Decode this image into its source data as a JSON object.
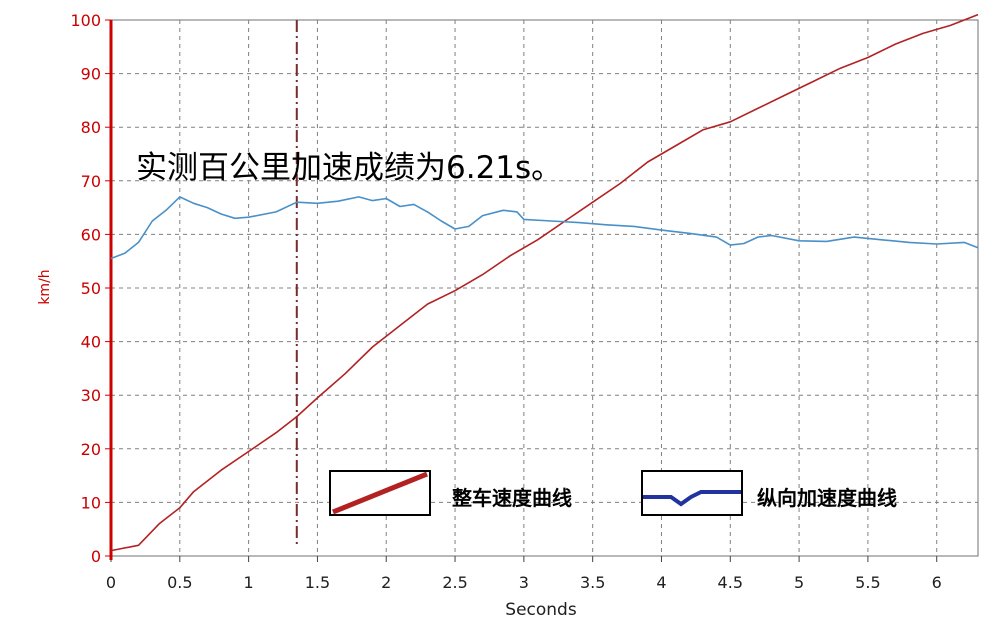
{
  "chart_data": {
    "type": "line",
    "xlabel": "Seconds",
    "ylabel": "km/h",
    "xlim": [
      0,
      6.3
    ],
    "ylim": [
      0,
      100
    ],
    "x_ticks": [
      "0",
      "0.5",
      "1",
      "1.5",
      "2",
      "2.5",
      "3",
      "3.5",
      "4",
      "4.5",
      "5",
      "5.5",
      "6"
    ],
    "y_ticks": [
      "0",
      "10",
      "20",
      "30",
      "40",
      "50",
      "60",
      "70",
      "80",
      "90",
      "100"
    ],
    "grid": true,
    "legend_placement": "bottom-right",
    "marker_time": 1.35,
    "annotation": "实测百公里加速成绩为6.21s。",
    "series": [
      {
        "name": "整车速度曲线",
        "color": "#b22222",
        "x": [
          0,
          0.2,
          0.35,
          0.5,
          0.6,
          0.8,
          1.0,
          1.2,
          1.35,
          1.5,
          1.7,
          1.9,
          2.1,
          2.3,
          2.5,
          2.7,
          2.9,
          3.1,
          3.3,
          3.5,
          3.7,
          3.9,
          4.1,
          4.3,
          4.5,
          4.7,
          4.9,
          5.1,
          5.3,
          5.5,
          5.7,
          5.9,
          6.1,
          6.3
        ],
        "y": [
          1,
          2,
          6,
          9,
          12,
          16,
          19.5,
          23,
          26,
          29.5,
          34,
          39,
          43,
          47,
          49.5,
          52.5,
          56,
          59,
          62.5,
          66,
          69.5,
          73.5,
          76.5,
          79.5,
          81,
          83.5,
          86,
          88.5,
          91,
          93,
          95.5,
          97.5,
          99,
          101
        ]
      },
      {
        "name": "纵向加速度曲线",
        "color": "#4a90c8",
        "x": [
          0,
          0.1,
          0.2,
          0.3,
          0.4,
          0.5,
          0.6,
          0.7,
          0.8,
          0.9,
          1.0,
          1.2,
          1.35,
          1.5,
          1.65,
          1.8,
          1.9,
          2.0,
          2.1,
          2.2,
          2.3,
          2.4,
          2.5,
          2.6,
          2.7,
          2.85,
          2.95,
          3.0,
          3.2,
          3.4,
          3.6,
          3.8,
          4.0,
          4.2,
          4.4,
          4.5,
          4.6,
          4.7,
          4.8,
          5.0,
          5.2,
          5.4,
          5.6,
          5.8,
          6.0,
          6.2,
          6.3
        ],
        "y": [
          55.5,
          56.5,
          58.5,
          62.5,
          64.5,
          67,
          65.8,
          65,
          63.8,
          63,
          63.2,
          64.2,
          66,
          65.8,
          66.2,
          67,
          66.3,
          66.7,
          65.2,
          65.6,
          64.2,
          62.5,
          61,
          61.5,
          63.5,
          64.5,
          64.2,
          62.8,
          62.5,
          62.2,
          61.8,
          61.5,
          60.8,
          60.2,
          59.5,
          58,
          58.3,
          59.5,
          59.8,
          58.8,
          58.7,
          59.5,
          59,
          58.5,
          58.2,
          58.5,
          57.5
        ]
      }
    ]
  },
  "legend": {
    "speed_label": "整车速度曲线",
    "accel_label": "纵向加速度曲线"
  }
}
